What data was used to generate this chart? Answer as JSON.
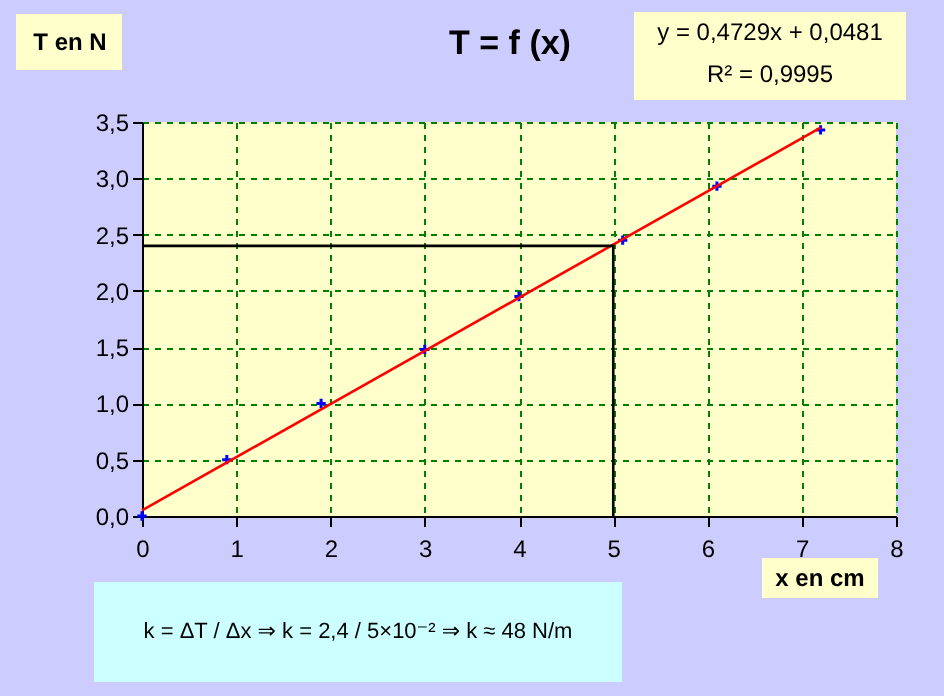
{
  "chart_data": {
    "type": "scatter",
    "title": "T = f (x)",
    "xlabel": "x en cm",
    "ylabel": "T en N",
    "annotations": [
      "y = 0,4729x + 0,0481",
      "R² = 0,9995",
      "k = ΔT / Δx  ⇒  k = 2,4 / 5×10⁻²  ⇒  k ≈ 48 N/m"
    ],
    "series": [
      {
        "color": "#0000ff",
        "marker": "cross",
        "x": [
          0,
          0.9,
          1.9,
          3.0,
          4.0,
          5.1,
          6.1,
          7.2
        ],
        "values": [
          0,
          0.5,
          1.0,
          1.48,
          1.95,
          2.45,
          2.93,
          3.43
        ]
      },
      {
        "type": "line",
        "color": "#ff0000",
        "x": [
          0,
          7.2
        ],
        "values": [
          0.05,
          3.45
        ]
      },
      {
        "type": "line",
        "color": "#000000",
        "x": [
          0,
          5,
          5
        ],
        "values": [
          2.4,
          2.4,
          0
        ]
      }
    ],
    "xlim": [
      0,
      8
    ],
    "xticks": [
      0,
      1,
      2,
      3,
      4,
      5,
      6,
      7,
      8
    ],
    "ylim": [
      0,
      3.5
    ],
    "yticks": [
      {
        "value": 0,
        "label": "0,0"
      },
      {
        "value": 0.5,
        "label": "0,5"
      },
      {
        "value": 1,
        "label": "1,0"
      },
      {
        "value": 1.5,
        "label": "1,5"
      },
      {
        "value": 2,
        "label": "2,0"
      },
      {
        "value": 2.5,
        "label": "2,5"
      },
      {
        "value": 3,
        "label": "3,0"
      },
      {
        "value": 3.5,
        "label": "3,5"
      }
    ],
    "grid": true
  }
}
